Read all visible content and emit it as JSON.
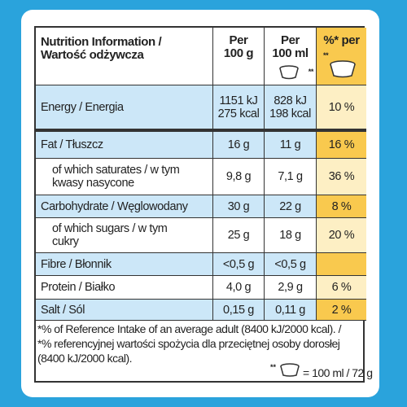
{
  "header": {
    "label": [
      "Nutrition Information /",
      "Wartość odżywcza"
    ],
    "per100g": [
      "Per",
      "100 g"
    ],
    "per100ml": [
      "Per",
      "100 ml"
    ],
    "per100ml_mark": "**",
    "percent": "%* per",
    "percent_mark": "**"
  },
  "rows": [
    {
      "label": [
        "Energy / Energia"
      ],
      "g": [
        "1151 kJ",
        "275 kcal"
      ],
      "ml": [
        "828 kJ",
        "198 kcal"
      ],
      "pct": "10 %",
      "shaded": true
    },
    {
      "label": [
        "Fat / Tłuszcz"
      ],
      "g": [
        "16 g"
      ],
      "ml": [
        "11 g"
      ],
      "pct": "16 %",
      "shaded": true
    },
    {
      "label": [
        "of which saturates / w tym",
        "kwasy nasycone"
      ],
      "g": [
        "9,8 g"
      ],
      "ml": [
        "7,1 g"
      ],
      "pct": "36 %",
      "shaded": false,
      "indent": true
    },
    {
      "label": [
        "Carbohydrate / Węglowodany"
      ],
      "g": [
        "30 g"
      ],
      "ml": [
        "22 g"
      ],
      "pct": "8 %",
      "shaded": true
    },
    {
      "label": [
        "of which sugars / w tym",
        "cukry"
      ],
      "g": [
        "25 g"
      ],
      "ml": [
        "18 g"
      ],
      "pct": "20 %",
      "shaded": false,
      "indent": true
    },
    {
      "label": [
        "Fibre / Błonnik"
      ],
      "g": [
        "<0,5 g"
      ],
      "ml": [
        "<0,5 g"
      ],
      "shaded": true
    },
    {
      "label": [
        "Protein / Białko"
      ],
      "g": [
        "4,0 g"
      ],
      "ml": [
        "2,9 g"
      ],
      "pct": "6 %",
      "shaded": false
    },
    {
      "label": [
        "Salt / Sól"
      ],
      "g": [
        "0,15 g"
      ],
      "ml": [
        "0,11 g"
      ],
      "pct": "2 %",
      "shaded": true
    }
  ],
  "footnote": [
    "*% of Reference Intake of an average adult (8400 kJ/2000 kcal). /",
    "*% referencyjnej wartości spożycia dla przeciętnej osoby dorosłej",
    "(8400 kJ/2000 kcal)."
  ],
  "serving": {
    "mark": "**",
    "text": "= 100 ml / 72 g"
  }
}
